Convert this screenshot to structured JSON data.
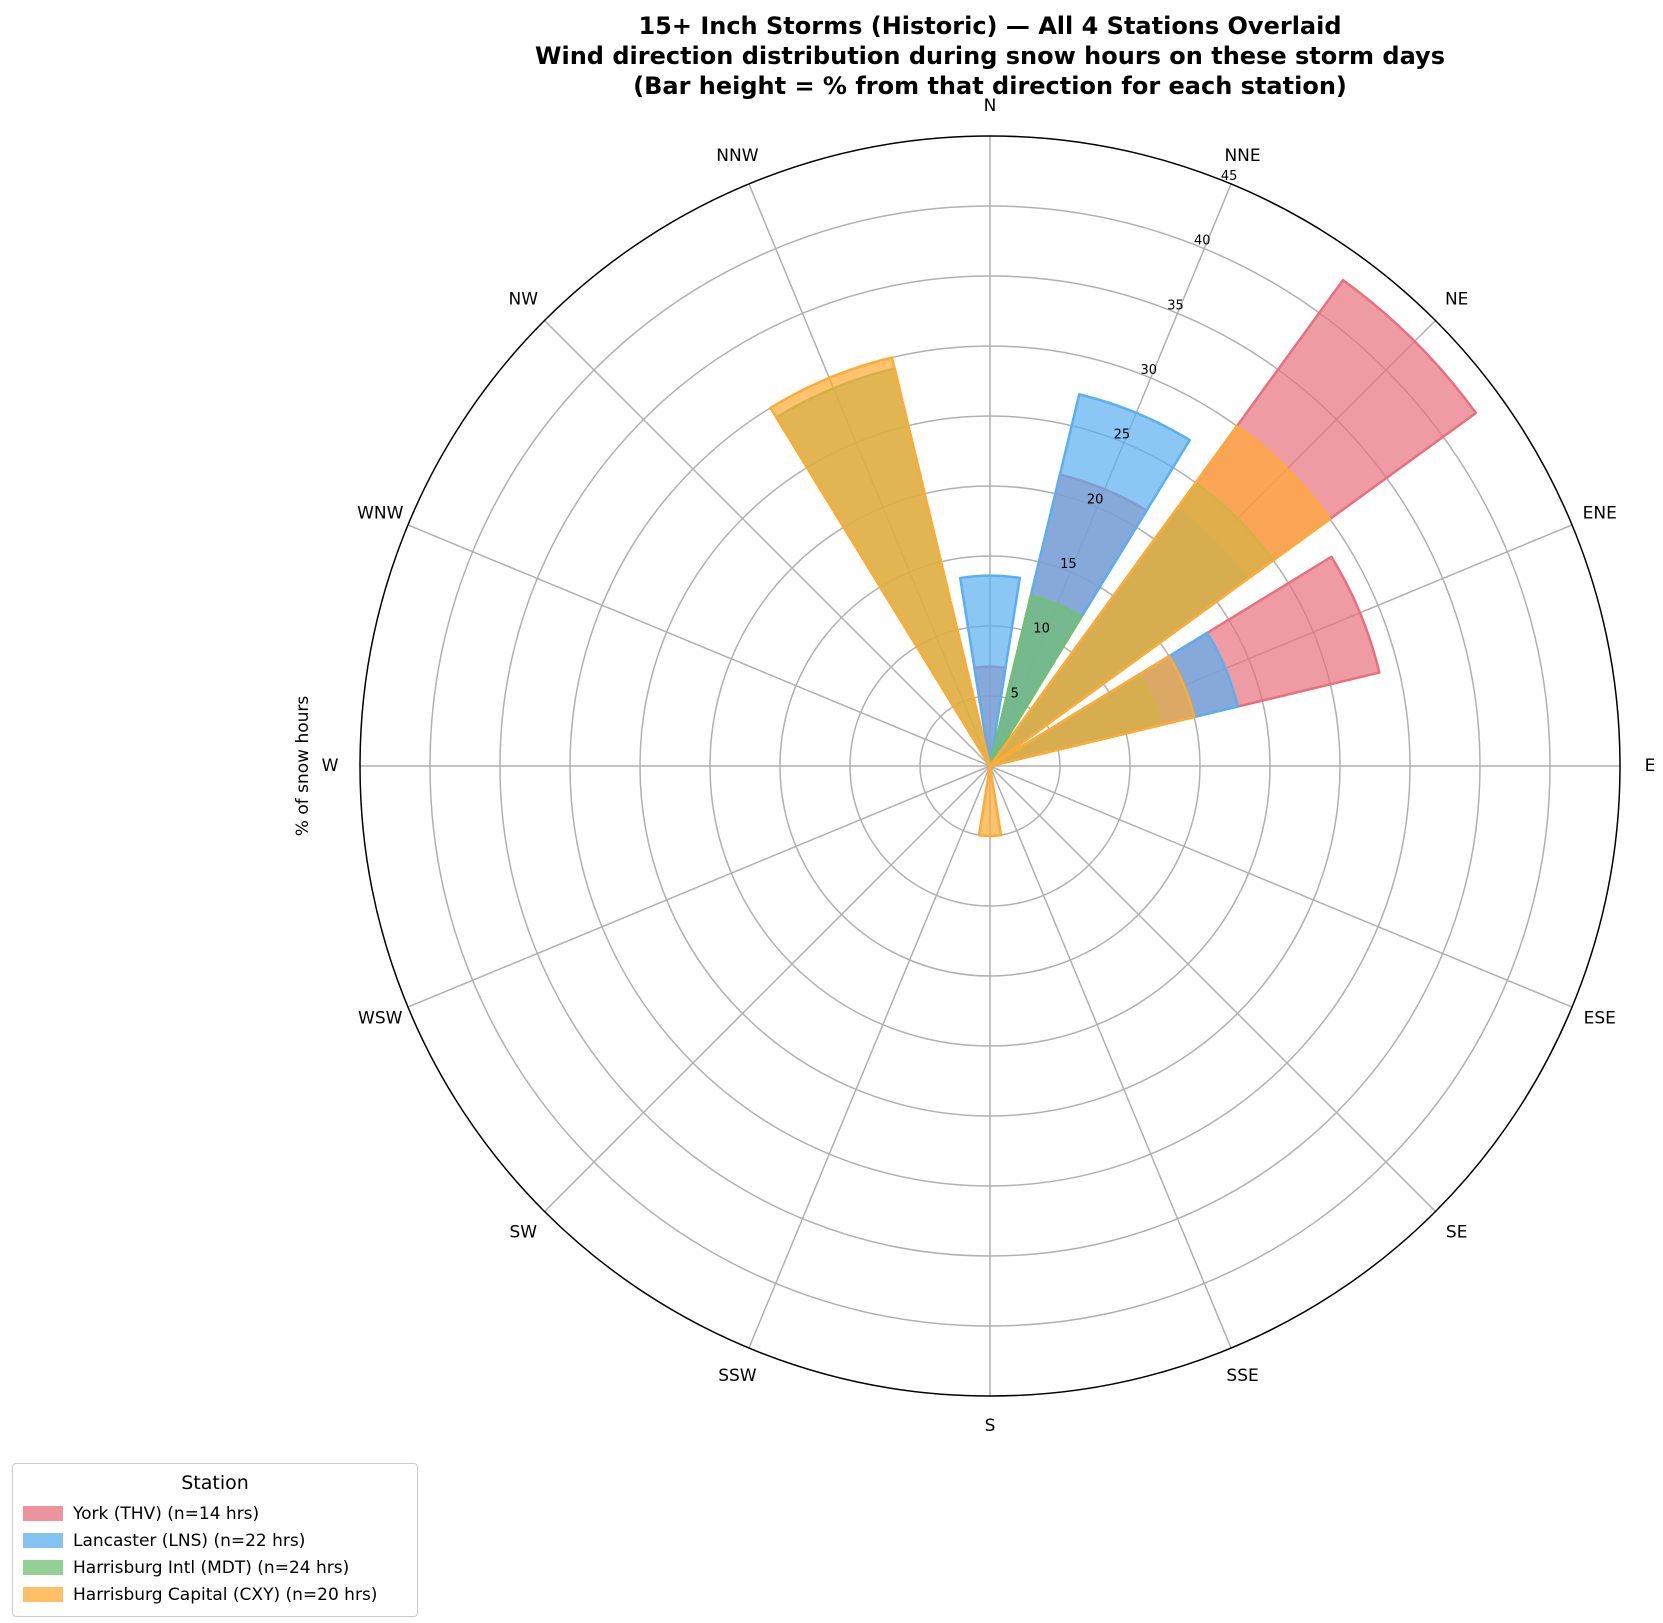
{
  "chart_data": {
    "type": "polar-bar",
    "title_lines": [
      "15+ Inch Storms (Historic) — All 4 Stations Overlaid",
      "Wind direction distribution during snow hours on these storm days",
      "(Bar height = % from that direction for each station)"
    ],
    "ylabel": "% of snow hours",
    "directions": [
      "N",
      "NNE",
      "NE",
      "ENE",
      "E",
      "ESE",
      "SE",
      "SSE",
      "S",
      "SSW",
      "SW",
      "WSW",
      "W",
      "WNW",
      "NW",
      "NNW"
    ],
    "r_ticks": [
      5,
      10,
      15,
      20,
      25,
      30,
      35,
      40,
      45
    ],
    "rlim": [
      0,
      45
    ],
    "legend_title": "Station",
    "legend_placement": "bottom-left",
    "series": [
      {
        "name": "York (THV) (n=14 hrs)",
        "color": "#e8707e",
        "values": [
          7.1,
          21.4,
          42.9,
          28.6,
          0,
          0,
          0,
          0,
          0,
          0,
          0,
          0,
          0,
          0,
          0,
          0
        ]
      },
      {
        "name": "Lancaster (LNS) (n=22 hrs)",
        "color": "#5aaff0",
        "values": [
          13.6,
          27.3,
          22.7,
          18.2,
          0,
          0,
          0,
          0,
          0,
          0,
          0,
          0,
          0,
          0,
          0,
          0
        ]
      },
      {
        "name": "Harrisburg Intl (MDT) (n=24 hrs)",
        "color": "#6fc16f",
        "values": [
          0,
          12.5,
          25,
          12.5,
          0,
          0,
          0,
          0,
          0,
          0,
          0,
          0,
          0,
          0,
          0,
          29.2
        ]
      },
      {
        "name": "Harrisburg Capital (CXY) (n=20 hrs)",
        "color": "#ffaa33",
        "values": [
          0,
          0,
          30,
          15,
          0,
          0,
          0,
          0,
          5,
          0,
          0,
          0,
          0,
          0,
          0,
          30
        ]
      }
    ]
  }
}
